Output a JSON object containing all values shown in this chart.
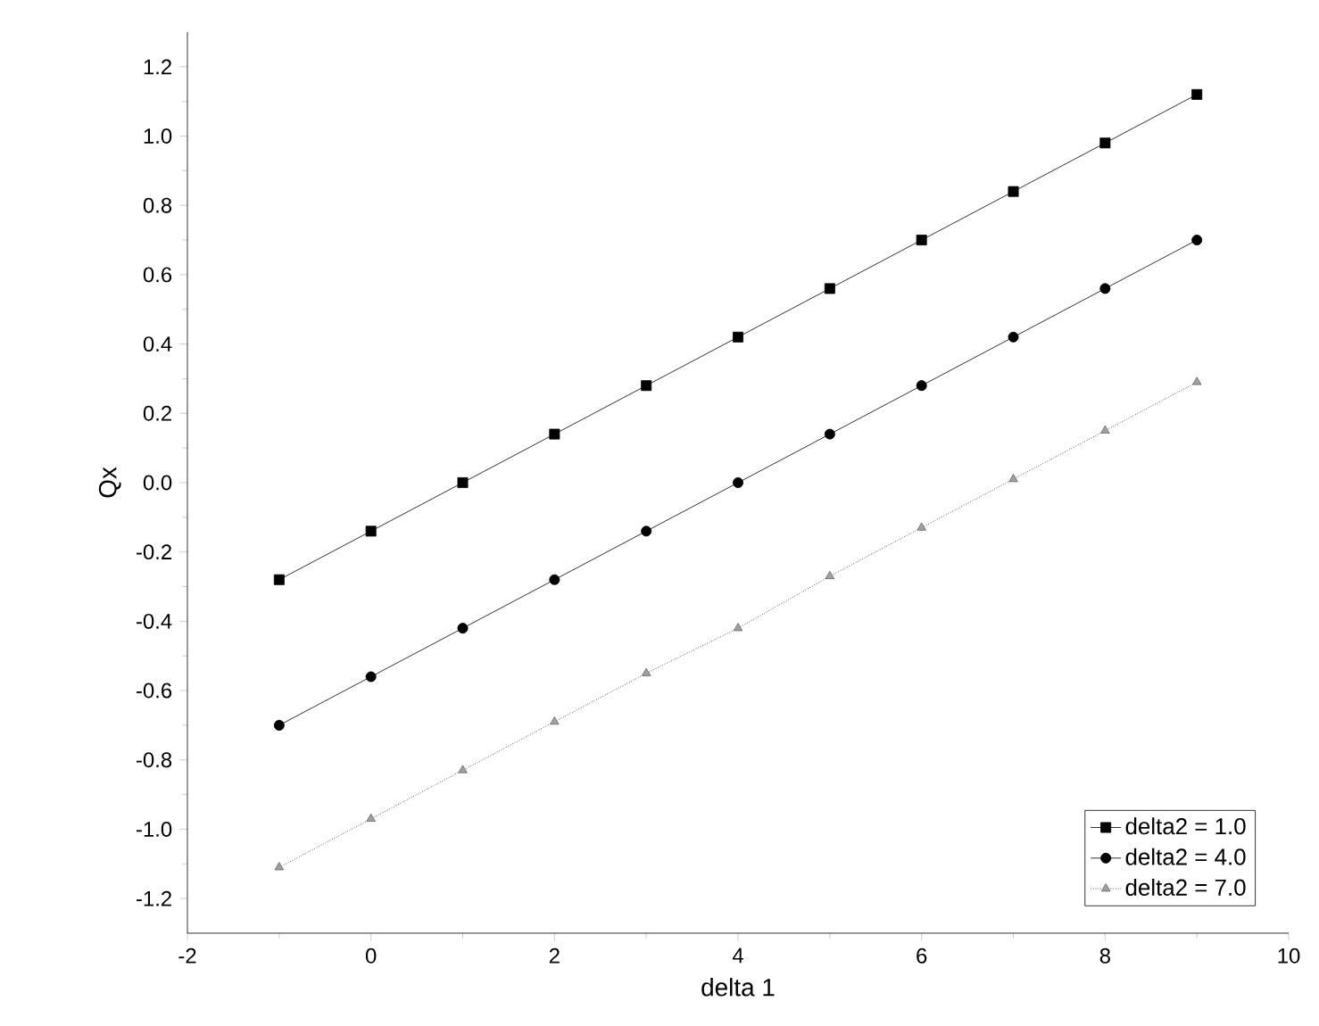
{
  "chart_data": {
    "type": "line",
    "xlabel": "delta 1",
    "ylabel": "Qx",
    "x": [
      -1,
      0,
      1,
      2,
      3,
      4,
      5,
      6,
      7,
      8,
      9
    ],
    "series": [
      {
        "name": "delta2 = 1.0",
        "color": "#000000",
        "marker": "square",
        "line_style": "solid",
        "values": [
          -0.28,
          -0.14,
          0.0,
          0.14,
          0.28,
          0.42,
          0.56,
          0.7,
          0.84,
          0.98,
          1.12
        ]
      },
      {
        "name": "delta2 = 4.0",
        "color": "#000000",
        "marker": "circle",
        "line_style": "solid",
        "values": [
          -0.7,
          -0.56,
          -0.42,
          -0.28,
          -0.14,
          0.0,
          0.14,
          0.28,
          0.42,
          0.56,
          0.7
        ]
      },
      {
        "name": "delta2 = 7.0",
        "color": "#a0a0a0",
        "marker": "triangle",
        "line_style": "dotted",
        "values": [
          -1.11,
          -0.97,
          -0.83,
          -0.69,
          -0.55,
          -0.42,
          -0.27,
          -0.13,
          0.01,
          0.15,
          0.29
        ]
      }
    ],
    "xlim": [
      -2,
      10
    ],
    "xticks": [
      -2,
      0,
      2,
      4,
      6,
      8,
      10
    ],
    "ylim": [
      -1.3,
      1.3
    ],
    "yticks": [
      {
        "value": -1.2,
        "label": "-1.2"
      },
      {
        "value": -1.0,
        "label": "-1.0"
      },
      -0.8,
      -0.6,
      -0.4,
      -0.2,
      {
        "value": 0,
        "label": "0.0"
      },
      0.2,
      0.4,
      0.6,
      0.8,
      {
        "value": 1.0,
        "label": "1.0"
      },
      1.2
    ],
    "grid": false,
    "legend": "bottom right"
  }
}
